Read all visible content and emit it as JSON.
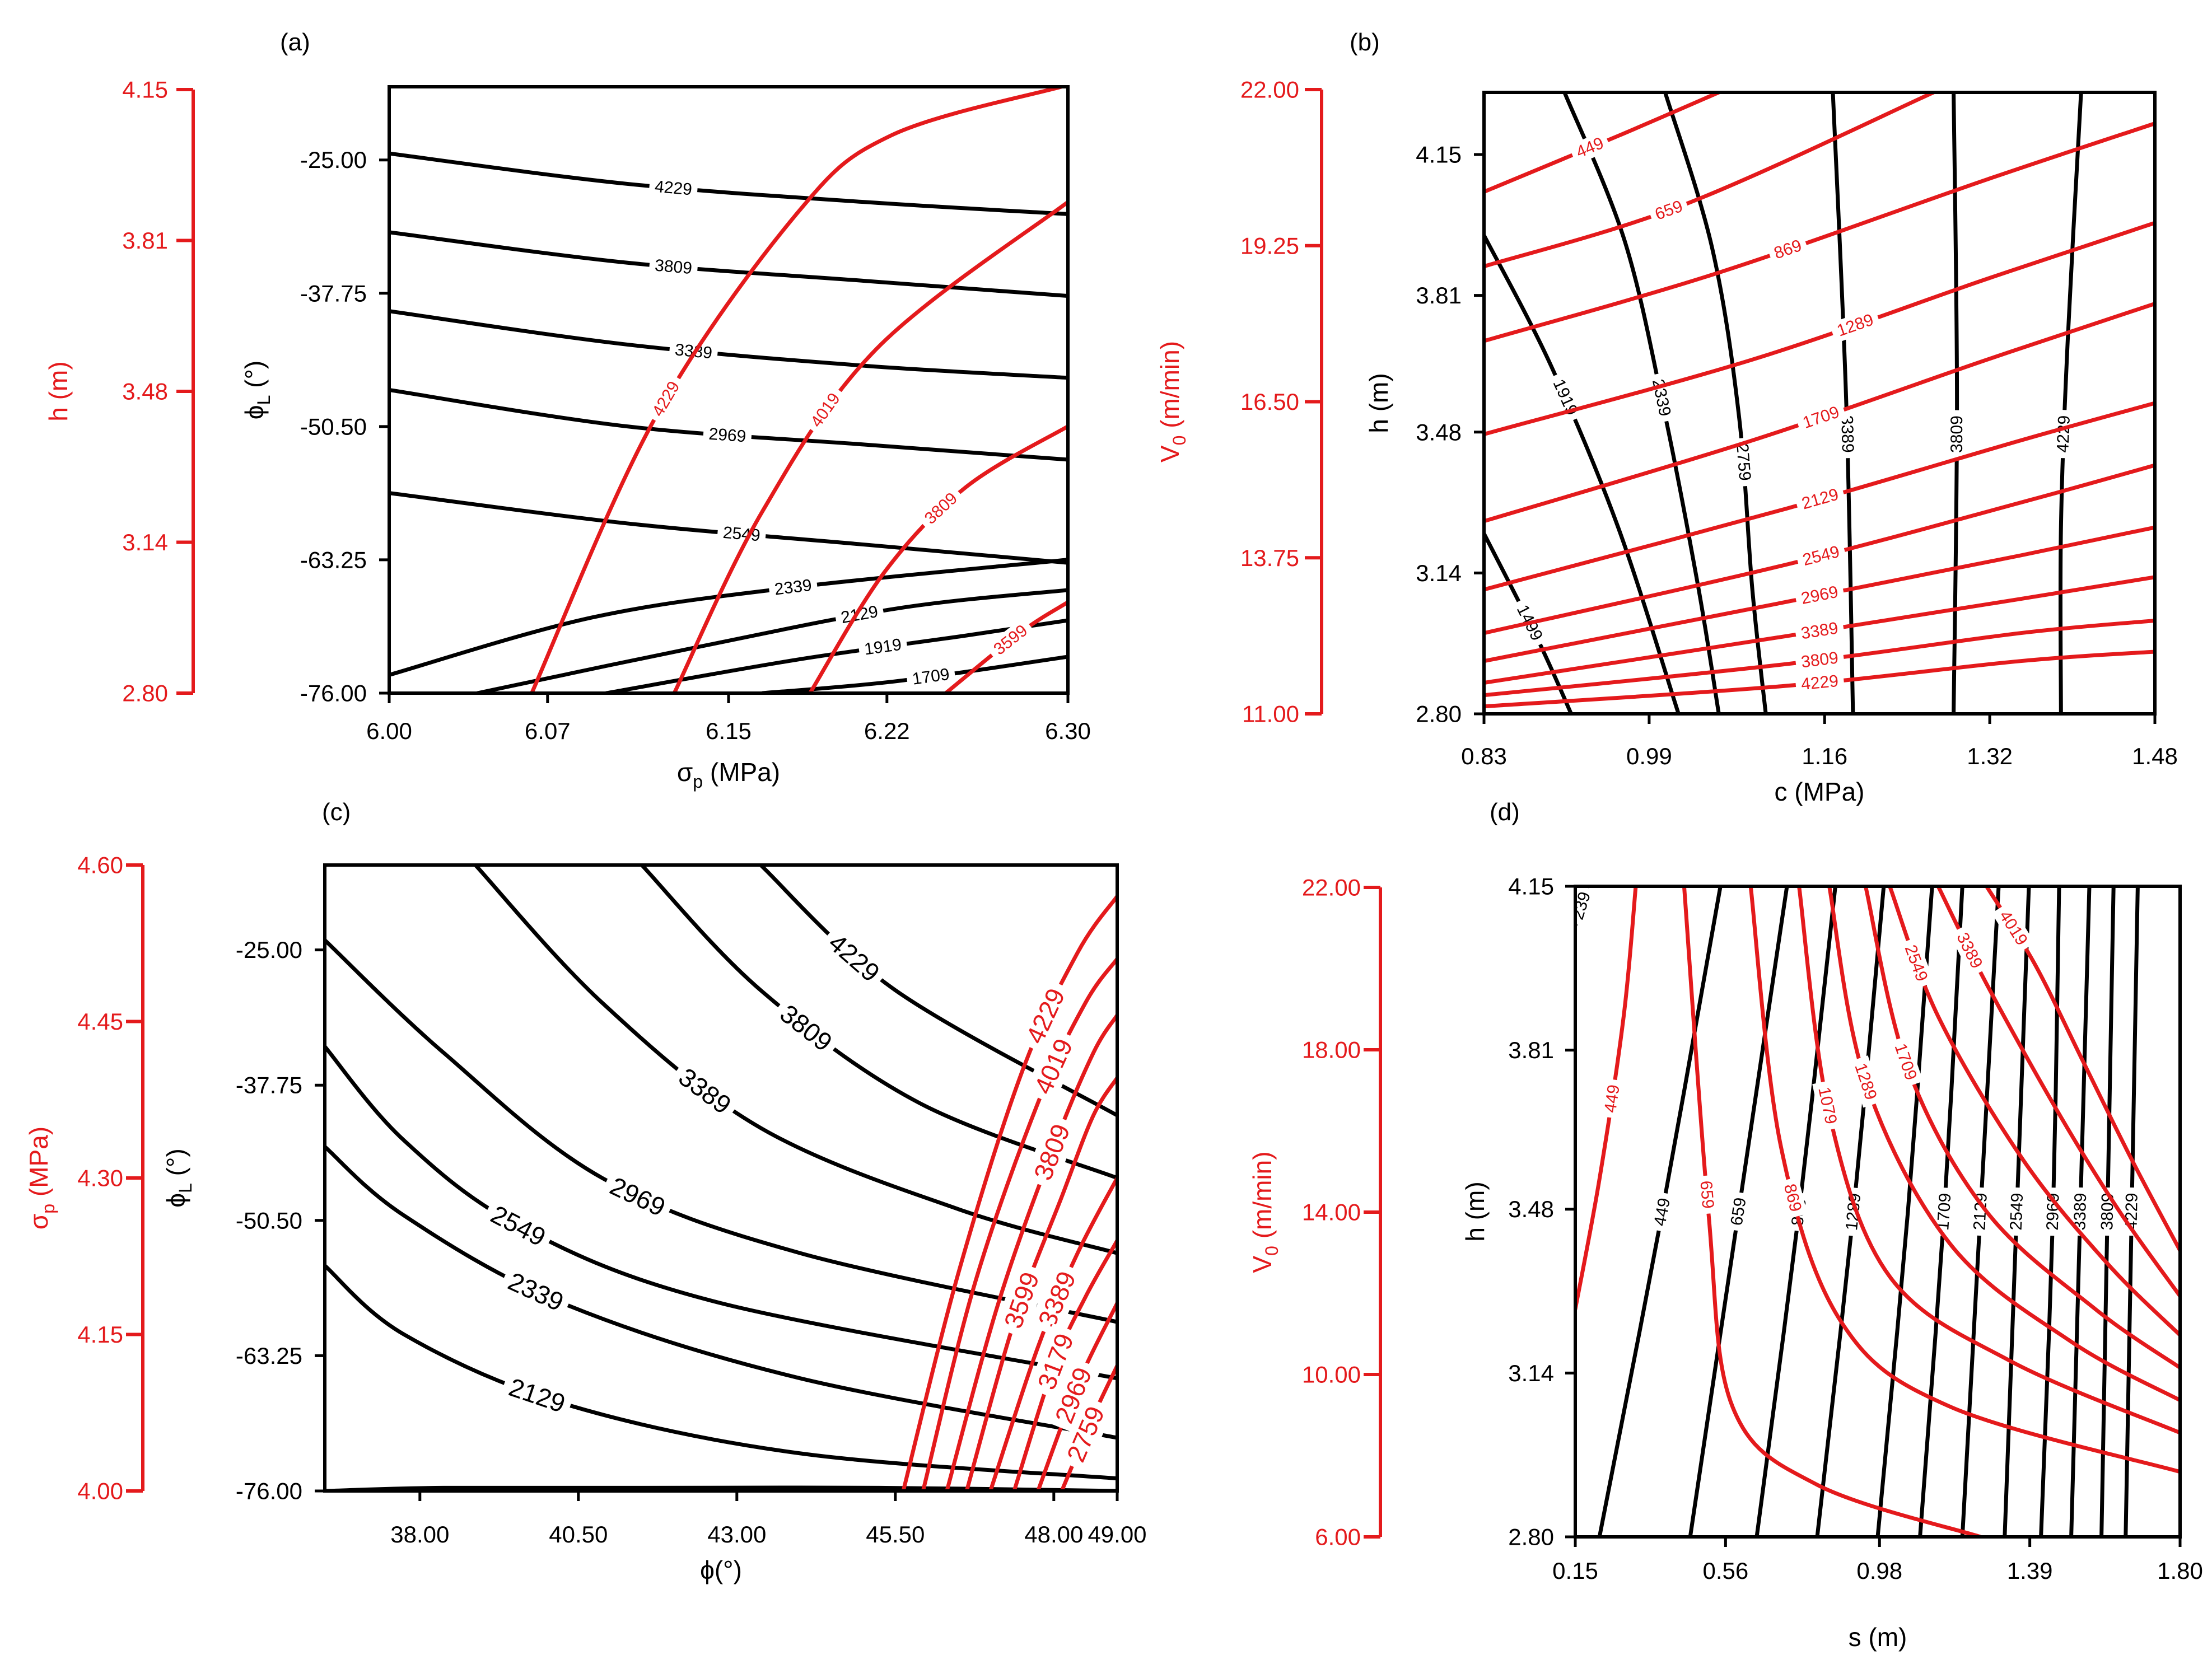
{
  "colors": {
    "primary": "#000000",
    "secondary": "#e41a1c",
    "background": "#ffffff"
  },
  "chart_data": [
    {
      "type": "contour",
      "panel_label": "(a)",
      "xlabel_main": "σ",
      "xlabel_sub": "p",
      "xlabel_tail": " (MPa)",
      "ylabel_main": "ϕ",
      "ylabel_sub": "L",
      "ylabel_tail": " (°)",
      "extra_label_main": "h",
      "extra_label_sub": "",
      "extra_label_tail": " (m)",
      "xlim": [
        6.0,
        6.3
      ],
      "ylim": [
        -76.0,
        -18.0
      ],
      "x_ticks": [
        "6.00",
        "6.07",
        "6.15",
        "6.22",
        "6.30"
      ],
      "y_ticks": [
        "-25.00",
        "-37.75",
        "-50.50",
        "-63.25",
        "-76.00"
      ],
      "extra_axis_ticks": [
        "4.15",
        "3.81",
        "3.48",
        "3.14",
        "2.80"
      ],
      "black_contour_labels": [
        "4229",
        "3809",
        "3389",
        "2969",
        "2549",
        "2339",
        "2129",
        "1919",
        "1709"
      ],
      "red_contour_labels": [
        "4229",
        "4019",
        "3809",
        "3599"
      ]
    },
    {
      "type": "contour",
      "panel_label": "(b)",
      "xlabel_main": "c",
      "xlabel_sub": "",
      "xlabel_tail": " (MPa)",
      "ylabel_main": "h",
      "ylabel_sub": "",
      "ylabel_tail": " (m)",
      "extra_label_main": "V",
      "extra_label_sub": "0",
      "extra_label_tail": " (m/min)",
      "xlim": [
        0.83,
        1.48
      ],
      "ylim": [
        2.8,
        4.3
      ],
      "x_ticks": [
        "0.83",
        "0.99",
        "1.16",
        "1.32",
        "1.48"
      ],
      "y_ticks": [
        "4.15",
        "3.81",
        "3.48",
        "3.14",
        "2.80"
      ],
      "extra_axis_ticks": [
        "22.00",
        "19.25",
        "16.50",
        "13.75",
        "11.00"
      ],
      "black_contour_labels": [
        "1499",
        "1919",
        "2339",
        "2759",
        "3389",
        "3809",
        "4229"
      ],
      "red_contour_labels": [
        "449",
        "659",
        "869",
        "1289",
        "1709",
        "2129",
        "2549",
        "2969",
        "3389",
        "3809",
        "4229"
      ]
    },
    {
      "type": "contour",
      "panel_label": "(c)",
      "xlabel_main": "ϕ",
      "xlabel_sub": "",
      "xlabel_tail": "(°)",
      "ylabel_main": "ϕ",
      "ylabel_sub": "L",
      "ylabel_tail": " (°)",
      "extra_label_main": "σ",
      "extra_label_sub": "p",
      "extra_label_tail": " (MPa)",
      "xlim": [
        36.5,
        49.0
      ],
      "ylim": [
        -76.0,
        -17.0
      ],
      "x_ticks": [
        "38.00",
        "40.50",
        "43.00",
        "45.50",
        "48.00",
        "49.00"
      ],
      "y_ticks": [
        "-25.00",
        "-37.75",
        "-50.50",
        "-63.25",
        "-76.00"
      ],
      "extra_axis_ticks": [
        "4.60",
        "4.45",
        "4.30",
        "4.15",
        "4.00"
      ],
      "black_contour_labels": [
        "4229",
        "3809",
        "3389",
        "2969",
        "2549",
        "2339",
        "2129"
      ],
      "red_contour_labels": [
        "4229",
        "4019",
        "3809",
        "3599",
        "3389",
        "3179",
        "2969",
        "2759"
      ]
    },
    {
      "type": "contour",
      "panel_label": "(d)",
      "xlabel_main": "s",
      "xlabel_sub": "",
      "xlabel_tail": " (m)",
      "ylabel_main": "h",
      "ylabel_sub": "",
      "ylabel_tail": " (m)",
      "extra_label_main": "V",
      "extra_label_sub": "0",
      "extra_label_tail": " (m/min)",
      "xlim": [
        0.15,
        1.8
      ],
      "ylim": [
        2.8,
        4.15
      ],
      "x_ticks": [
        "0.15",
        "0.56",
        "0.98",
        "1.39",
        "1.80"
      ],
      "y_ticks": [
        "4.15",
        "3.81",
        "3.48",
        "3.14",
        "2.80"
      ],
      "extra_axis_ticks": [
        "22.00",
        "18.00",
        "14.00",
        "10.00",
        "6.00"
      ],
      "black_contour_labels": [
        "239",
        "449",
        "659",
        "869",
        "1289",
        "1709",
        "2129",
        "2549",
        "2969",
        "3389",
        "3809",
        "4229"
      ],
      "red_contour_labels": [
        "449",
        "659",
        "869",
        "1079",
        "1289",
        "1709",
        "2549",
        "3389",
        "4019"
      ]
    }
  ]
}
